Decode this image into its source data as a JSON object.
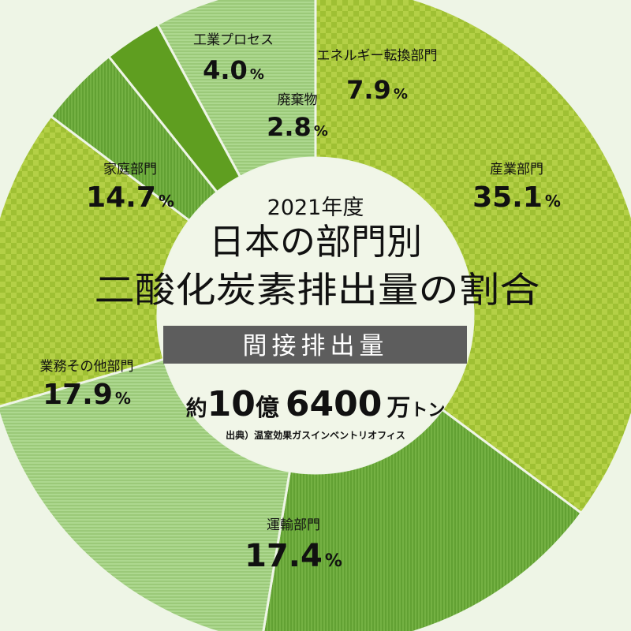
{
  "chart_data": {
    "type": "pie",
    "style": "donut",
    "start_at": "top",
    "direction": "clockwise",
    "slices": [
      {
        "label": "産業部門",
        "value": 35.1,
        "pct_text": "35.1",
        "color": "#a9c83d",
        "pattern": "check"
      },
      {
        "label": "運輸部門",
        "value": 17.4,
        "pct_text": "17.4",
        "color": "#6aaa3a",
        "pattern": "vstripe"
      },
      {
        "label": "業務その他部門",
        "value": 17.9,
        "pct_text": "17.9",
        "color": "#a3cf82",
        "pattern": "hstripe"
      },
      {
        "label": "家庭部門",
        "value": 14.7,
        "pct_text": "14.7",
        "color": "#a9c83d",
        "pattern": "check"
      },
      {
        "label": "工業プロセス",
        "value": 4.0,
        "pct_text": "4.0",
        "color": "#6aaa3a",
        "pattern": "vstripe"
      },
      {
        "label": "廃棄物",
        "value": 2.8,
        "pct_text": "2.8",
        "color": "#5f9e20",
        "pattern": "solid"
      },
      {
        "label": "エネルギー転換部門",
        "value": 7.9,
        "pct_text": "7.9",
        "color": "#a3cf82",
        "pattern": "hstripe"
      }
    ],
    "percent_sign": "%"
  },
  "center": {
    "year": "2021年度",
    "title_line1": "日本の部門別",
    "title_line2": "二酸化炭素排出量の割合",
    "banner": "間接排出量",
    "total_prefix": "約",
    "total_num1": "10",
    "total_unit1": "億",
    "total_num2": "6400",
    "total_unit2": "万",
    "total_unit3": "トン",
    "source": "出典）温室効果ガスインベントリオフィス"
  },
  "colors": {
    "background": "#eef5e6",
    "center_fill": "#f1f6e8",
    "banner_fill": "#5d5d5d",
    "banner_text": "#ffffff",
    "text": "#111111"
  }
}
